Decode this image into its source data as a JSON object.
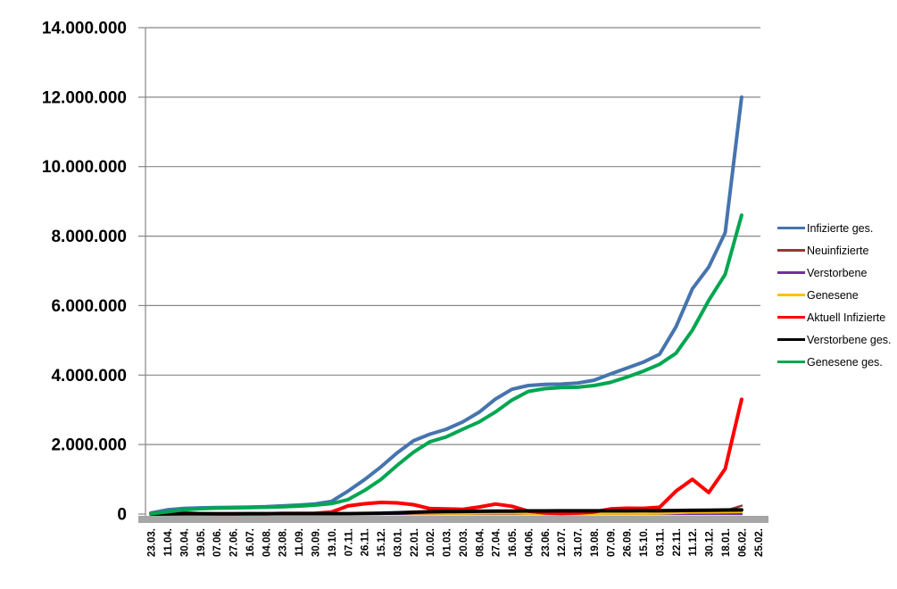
{
  "chart_data": {
    "type": "line",
    "title": "",
    "xlabel": "",
    "ylabel": "",
    "grid": true,
    "legend_position": "right",
    "ylim": [
      0,
      14000000
    ],
    "y_ticks": [
      0,
      2000000,
      4000000,
      6000000,
      8000000,
      10000000,
      12000000,
      14000000
    ],
    "y_tick_labels": [
      "0",
      "2.000.000",
      "4.000.000",
      "6.000.000",
      "8.000.000",
      "10.000.000",
      "12.000.000",
      "14.000.000"
    ],
    "categories": [
      "23.03.",
      "11.04.",
      "30.04.",
      "19.05.",
      "07.06.",
      "27.06.",
      "16.07.",
      "04.08.",
      "23.08.",
      "11.09.",
      "30.09.",
      "19.10.",
      "07.11.",
      "26.11.",
      "15.12.",
      "03.01.",
      "22.01.",
      "10.02.",
      "01.03.",
      "20.03.",
      "08.04.",
      "27.04.",
      "16.05.",
      "04.06.",
      "23.06.",
      "12.07.",
      "31.07.",
      "19.08.",
      "07.09.",
      "26.09.",
      "15.10.",
      "03.11.",
      "22.11.",
      "11.12.",
      "30.12.",
      "18.01.",
      "06.02.",
      "25.02."
    ],
    "series": [
      {
        "name": "Infizierte ges.",
        "color": "#4674AE",
        "width": 4,
        "values": [
          29000,
          122000,
          160000,
          176000,
          184000,
          192000,
          200000,
          211000,
          233000,
          256000,
          290000,
          366000,
          658000,
          983000,
          1350000,
          1760000,
          2110000,
          2300000,
          2440000,
          2650000,
          2930000,
          3310000,
          3590000,
          3700000,
          3730000,
          3740000,
          3770000,
          3850000,
          4030000,
          4200000,
          4370000,
          4600000,
          5390000,
          6480000,
          7110000,
          8100000,
          12000000,
          null
        ]
      },
      {
        "name": "Neuinfizierte",
        "color": "#953735",
        "width": 2.5,
        "values": [
          4000,
          5000,
          2000,
          800,
          400,
          500,
          400,
          700,
          1500,
          1700,
          2400,
          7500,
          20000,
          22500,
          26000,
          22000,
          17000,
          8500,
          8000,
          13000,
          20000,
          23000,
          14000,
          5000,
          1500,
          600,
          2500,
          6000,
          11000,
          9500,
          10000,
          19000,
          50000,
          60000,
          40000,
          92000,
          240000,
          null
        ]
      },
      {
        "name": "Verstorbene",
        "color": "#7030A0",
        "width": 2.5,
        "values": [
          60,
          220,
          180,
          90,
          40,
          25,
          15,
          10,
          10,
          10,
          15,
          35,
          125,
          310,
          500,
          700,
          780,
          560,
          380,
          240,
          190,
          240,
          190,
          90,
          60,
          25,
          20,
          30,
          55,
          65,
          70,
          110,
          210,
          350,
          360,
          250,
          190,
          null
        ]
      },
      {
        "name": "Genesene",
        "color": "#FFC000",
        "width": 2.5,
        "values": [
          1800,
          4800,
          3500,
          1700,
          900,
          700,
          600,
          800,
          1300,
          1600,
          2200,
          4500,
          12000,
          18000,
          23000,
          27000,
          21000,
          13000,
          9000,
          11000,
          15000,
          21000,
          19000,
          9500,
          3800,
          1400,
          2200,
          4500,
          9000,
          10500,
          9500,
          12000,
          28000,
          48000,
          45000,
          52000,
          60000,
          null
        ]
      },
      {
        "name": "Aktuell Infizierte",
        "color": "#FF0000",
        "width": 4,
        "values": [
          19000,
          56000,
          28000,
          13000,
          7000,
          6000,
          5000,
          7000,
          17000,
          18000,
          23000,
          56000,
          234000,
          295000,
          335000,
          320000,
          270000,
          157000,
          150000,
          136000,
          202000,
          288000,
          224000,
          81000,
          30000,
          9000,
          28000,
          58000,
          147000,
          166000,
          165000,
          194000,
          661000,
          1000000,
          620000,
          1300000,
          3300000,
          null
        ]
      },
      {
        "name": "Verstorbene ges.",
        "color": "#000000",
        "width": 4,
        "values": [
          200,
          2800,
          6300,
          8100,
          8700,
          8900,
          9100,
          9200,
          9300,
          9400,
          9500,
          9800,
          11000,
          15000,
          23000,
          35000,
          51000,
          63000,
          70000,
          74500,
          78500,
          82500,
          86000,
          89000,
          90300,
          91200,
          91700,
          92100,
          92600,
          93300,
          94600,
          96000,
          99400,
          105000,
          111000,
          116000,
          119000,
          null
        ]
      },
      {
        "name": "Genesene ges.",
        "color": "#00A651",
        "width": 4,
        "values": [
          10000,
          64000,
          126000,
          155000,
          169000,
          178000,
          187000,
          196000,
          207000,
          229000,
          258000,
          300000,
          413000,
          673000,
          990000,
          1400000,
          1780000,
          2080000,
          2220000,
          2440000,
          2650000,
          2940000,
          3280000,
          3530000,
          3610000,
          3640000,
          3650000,
          3700000,
          3790000,
          3940000,
          4110000,
          4310000,
          4630000,
          5290000,
          6150000,
          6900000,
          8600000,
          null
        ]
      }
    ],
    "colors": {
      "gridline": "#878787",
      "axis": "#878787",
      "x_axis_bar": "#A6A6A6",
      "text": "#000000",
      "background": "#FFFFFF"
    }
  }
}
